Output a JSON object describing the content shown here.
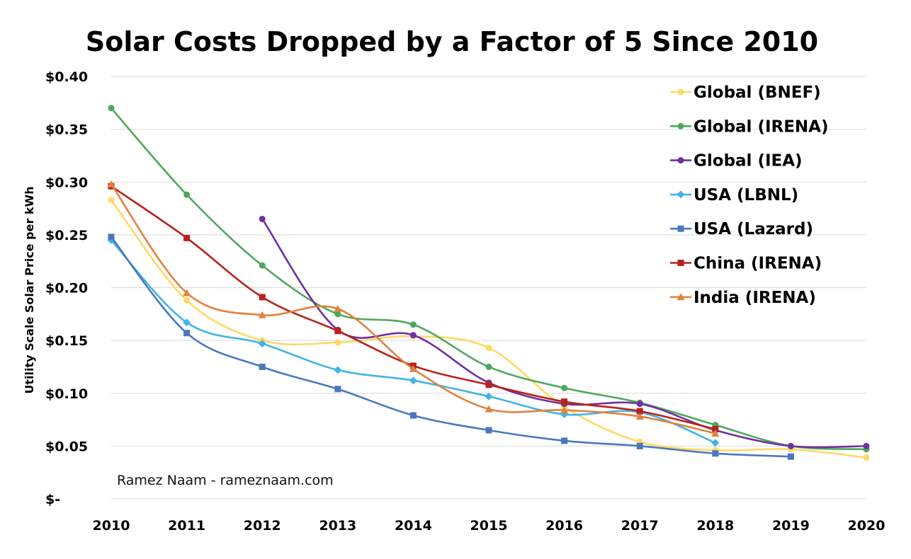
{
  "chart_data": {
    "type": "line",
    "title": "Solar Costs Dropped by a Factor of 5 Since 2010",
    "xlabel": "",
    "ylabel": "Utility Scale Solar Price per kWh",
    "x": [
      2010,
      2011,
      2012,
      2013,
      2014,
      2015,
      2016,
      2017,
      2018,
      2019,
      2020
    ],
    "xticks": [
      "2010",
      "2011",
      "2012",
      "2013",
      "2014",
      "2015",
      "2016",
      "2017",
      "2018",
      "2019",
      "2020"
    ],
    "ylim": [
      0,
      0.4
    ],
    "yticks": [
      {
        "value": 0.4,
        "label": "$0.40"
      },
      {
        "value": 0.35,
        "label": "$0.35"
      },
      {
        "value": 0.3,
        "label": "$0.30"
      },
      {
        "value": 0.25,
        "label": "$0.25"
      },
      {
        "value": 0.2,
        "label": "$0.20"
      },
      {
        "value": 0.15,
        "label": "$0.15"
      },
      {
        "value": 0.1,
        "label": "$0.10"
      },
      {
        "value": 0.05,
        "label": "$0.05"
      },
      {
        "value": 0.0,
        "label": "$-"
      }
    ],
    "grid": true,
    "legend_position": "top-right",
    "annotation": "Ramez Naam - rameznaam.com",
    "series": [
      {
        "name": "Global (BNEF)",
        "color": "#FFD966",
        "marker": "circle",
        "values": [
          0.283,
          0.188,
          0.15,
          0.148,
          0.154,
          0.143,
          0.087,
          0.054,
          0.046,
          0.047,
          0.039
        ]
      },
      {
        "name": "Global (IRENA)",
        "color": "#4EA85C",
        "marker": "circle",
        "values": [
          0.37,
          0.288,
          0.221,
          0.175,
          0.165,
          0.125,
          0.105,
          0.091,
          0.07,
          0.05,
          0.047
        ]
      },
      {
        "name": "Global (IEA)",
        "color": "#7030A0",
        "marker": "circle",
        "values": [
          null,
          null,
          0.265,
          0.16,
          0.155,
          0.11,
          0.09,
          0.09,
          0.065,
          0.05,
          0.05
        ]
      },
      {
        "name": "USA (LBNL)",
        "color": "#41B4E6",
        "marker": "diamond",
        "values": [
          0.245,
          0.167,
          0.147,
          0.122,
          0.112,
          0.097,
          0.08,
          0.082,
          0.053,
          null,
          null
        ]
      },
      {
        "name": "USA (Lazard)",
        "color": "#4A78C0",
        "marker": "square",
        "values": [
          0.248,
          0.157,
          0.125,
          0.104,
          0.079,
          0.065,
          0.055,
          0.05,
          0.043,
          0.04,
          null
        ]
      },
      {
        "name": "China (IRENA)",
        "color": "#B7221C",
        "marker": "square",
        "values": [
          0.296,
          0.247,
          0.191,
          0.159,
          0.126,
          0.108,
          0.092,
          0.083,
          0.066,
          null,
          null
        ]
      },
      {
        "name": "India (IRENA)",
        "color": "#E0833C",
        "marker": "triangle",
        "values": [
          0.298,
          0.195,
          0.174,
          0.18,
          0.123,
          0.085,
          0.084,
          0.078,
          0.062,
          null,
          null
        ]
      }
    ]
  }
}
